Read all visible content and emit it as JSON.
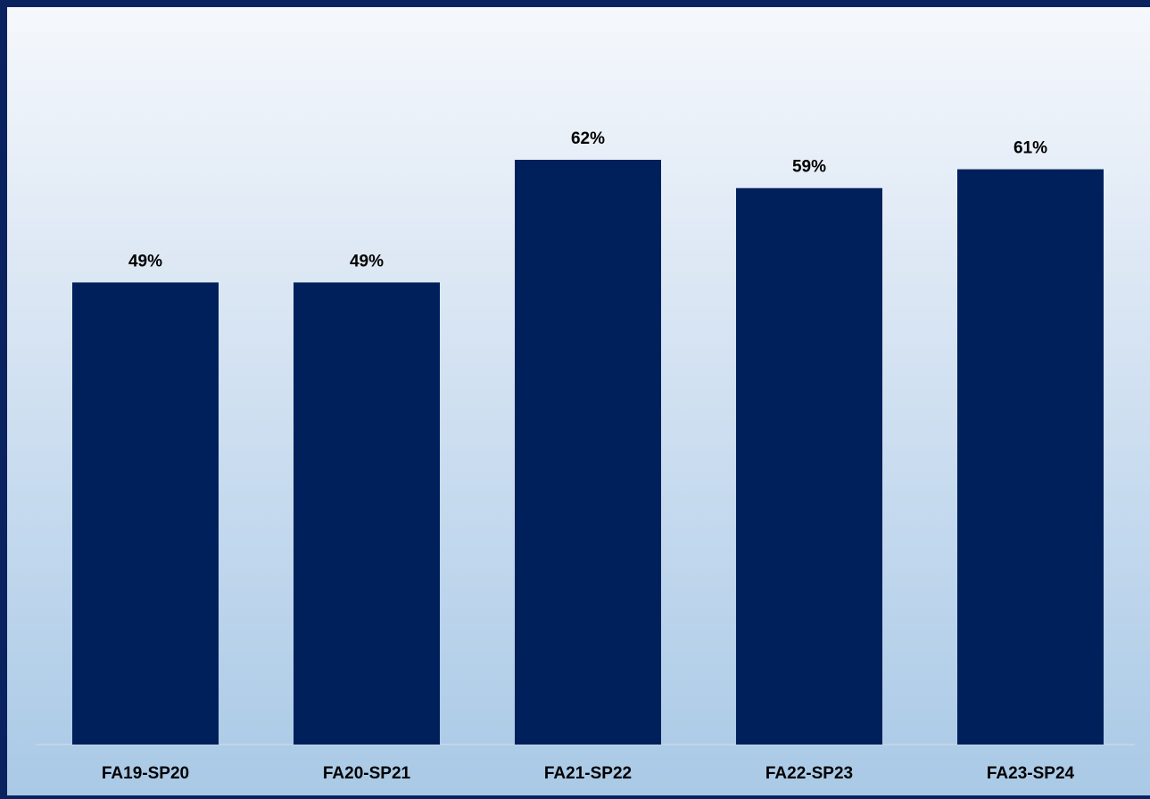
{
  "chart_data": {
    "type": "bar",
    "categories": [
      "FA19-SP20",
      "FA20-SP21",
      "FA21-SP22",
      "FA22-SP23",
      "FA23-SP24"
    ],
    "values": [
      49,
      49,
      62,
      59,
      61
    ],
    "data_labels": [
      "49%",
      "49%",
      "62%",
      "59%",
      "61%"
    ],
    "unit": "%",
    "ylim": [
      0,
      78
    ],
    "grid": false,
    "legend": "none",
    "title": "",
    "xlabel": "",
    "ylabel": "",
    "bar_color": "#00205b",
    "background_colors": [
      "#f5f8fc",
      "#a9c9e6"
    ],
    "border_color": "#0a2260"
  }
}
